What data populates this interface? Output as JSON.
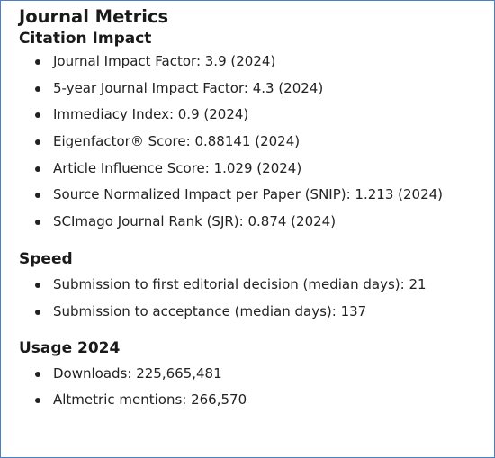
{
  "page_title": "Journal Metrics",
  "sections": [
    {
      "heading": "Citation Impact",
      "items": [
        "Journal Impact Factor: 3.9 (2024)",
        "5-year Journal Impact Factor: 4.3 (2024)",
        "Immediacy Index: 0.9 (2024)",
        "Eigenfactor® Score: 0.88141 (2024)",
        "Article Influence Score: 1.029 (2024)",
        "Source Normalized Impact per Paper (SNIP): 1.213 (2024)",
        "SCImago Journal Rank (SJR): 0.874 (2024)"
      ]
    },
    {
      "heading": "Speed",
      "items": [
        "Submission to first editorial decision (median days): 21",
        "Submission to acceptance (median days): 137"
      ]
    },
    {
      "heading": "Usage 2024",
      "items": [
        "Downloads: 225,665,481",
        "Altmetric mentions: 266,570"
      ]
    }
  ],
  "colors": {
    "border": "#4a7fc1",
    "text": "#1a1a1a"
  }
}
